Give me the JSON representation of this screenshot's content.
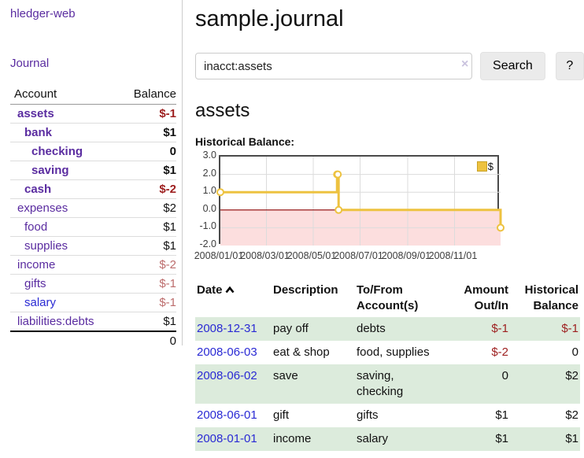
{
  "app": {
    "title": "hledger-web"
  },
  "colors": {
    "link_visited": "#5a2ca0",
    "link_new": "#2a2ad4",
    "negative_strong": "#9e2020",
    "negative_soft": "#bc6c6c",
    "row_highlight_green": "#dcebdc",
    "series_yellow": "#edc240",
    "series_swatch_border": "#c9a227",
    "zero_line_red": "#8b0000",
    "negative_region_pink": "#fcdede",
    "grid_gray": "#dcdcdc"
  },
  "sidebar": {
    "nav": {
      "journal_label": "Journal"
    },
    "accounts_table": {
      "headers": [
        "Account",
        "Balance"
      ],
      "rows": [
        {
          "account": "assets",
          "indent": 1,
          "emphasis": true,
          "unvisited": false,
          "balance": "$-1",
          "tone": "neg-strong"
        },
        {
          "account": "bank",
          "indent": 2,
          "emphasis": true,
          "unvisited": false,
          "balance": "$1",
          "tone": "pos"
        },
        {
          "account": "checking",
          "indent": 3,
          "emphasis": true,
          "unvisited": false,
          "balance": "0",
          "tone": "pos"
        },
        {
          "account": "saving",
          "indent": 3,
          "emphasis": true,
          "unvisited": false,
          "balance": "$1",
          "tone": "pos"
        },
        {
          "account": "cash",
          "indent": 2,
          "emphasis": true,
          "unvisited": false,
          "balance": "$-2",
          "tone": "neg-strong"
        },
        {
          "account": "expenses",
          "indent": 1,
          "emphasis": false,
          "unvisited": false,
          "balance": "$2",
          "tone": "pos"
        },
        {
          "account": "food",
          "indent": 2,
          "emphasis": false,
          "unvisited": false,
          "balance": "$1",
          "tone": "pos"
        },
        {
          "account": "supplies",
          "indent": 2,
          "emphasis": false,
          "unvisited": false,
          "balance": "$1",
          "tone": "pos"
        },
        {
          "account": "income",
          "indent": 1,
          "emphasis": false,
          "unvisited": false,
          "balance": "$-2",
          "tone": "neg-soft"
        },
        {
          "account": "gifts",
          "indent": 2,
          "emphasis": false,
          "unvisited": false,
          "balance": "$-1",
          "tone": "neg-soft"
        },
        {
          "account": "salary",
          "indent": 2,
          "emphasis": false,
          "unvisited": true,
          "balance": "$-1",
          "tone": "neg-soft"
        },
        {
          "account": "liabilities:debts",
          "indent": 1,
          "emphasis": false,
          "unvisited": false,
          "balance": "$1",
          "tone": "pos"
        }
      ],
      "total": "0"
    }
  },
  "main": {
    "title": "sample.journal",
    "search": {
      "value": "inacct:assets",
      "clear_icon": "×",
      "search_label": "Search",
      "help_label": "?"
    },
    "account_heading": "assets",
    "chart_label": "Historical Balance:",
    "register_table": {
      "headers": [
        "Date",
        "Description",
        "To/From Account(s)",
        "Amount Out/In",
        "Historical Balance"
      ],
      "rows": [
        {
          "date": "2008-12-31",
          "description": "pay off",
          "accounts": "debts",
          "amount": "$-1",
          "balance": "$-1"
        },
        {
          "date": "2008-06-03",
          "description": "eat & shop",
          "accounts": "food, supplies",
          "amount": "$-2",
          "balance": "0"
        },
        {
          "date": "2008-06-02",
          "description": "save",
          "accounts": "saving, checking",
          "amount": "0",
          "balance": "$2"
        },
        {
          "date": "2008-06-01",
          "description": "gift",
          "accounts": "gifts",
          "amount": "$1",
          "balance": "$2"
        },
        {
          "date": "2008-01-01",
          "description": "income",
          "accounts": "salary",
          "amount": "$1",
          "balance": "$1"
        }
      ]
    }
  },
  "chart_data": {
    "type": "line",
    "step": true,
    "title": "Historical Balance:",
    "series": [
      {
        "name": "$",
        "points": [
          [
            "2008-01-01",
            1
          ],
          [
            "2008-06-01",
            2
          ],
          [
            "2008-06-02",
            2
          ],
          [
            "2008-06-03",
            0
          ],
          [
            "2008-12-31",
            -1
          ]
        ]
      }
    ],
    "x_range": [
      "2008-01-01",
      "2008-12-31"
    ],
    "x_ticks": [
      "2008/01/01",
      "2008/03/01",
      "2008/05/01",
      "2008/07/01",
      "2008/09/01",
      "2008/11/01"
    ],
    "y_ticks": [
      "3.0",
      "2.0",
      "1.0",
      "0.0",
      "-1.0",
      "-2.0"
    ],
    "ylim": [
      -2,
      3
    ],
    "grid": true,
    "legend": {
      "label": "$",
      "position": "top-right"
    }
  }
}
